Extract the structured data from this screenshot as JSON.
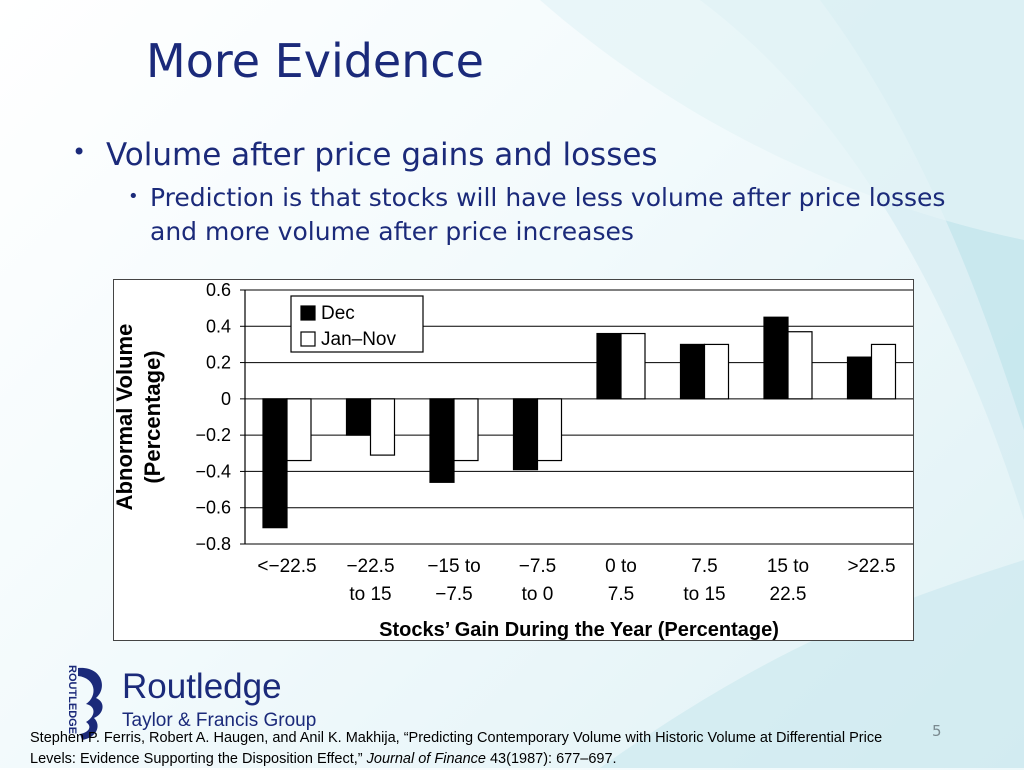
{
  "slide": {
    "title": "More Evidence",
    "bullet_1": "Volume after price gains and losses",
    "bullet_2": "Prediction is that stocks will have less volume after price losses and more volume after price increases",
    "page_number": "5"
  },
  "logo": {
    "name": "Routledge",
    "subtitle": "Taylor & Francis Group",
    "vertical_text": "ROUTLEDGE",
    "color": "#1b2a7a"
  },
  "citation": {
    "before_journal": "Stephen P. Ferris, Robert A. Haugen, and Anil K. Makhija, “Predicting Contemporary Volume with Historic Volume at Differential Price Levels: Evidence Supporting the Disposition Effect,”",
    "journal": "Journal of Finance",
    "after_journal": "43(1987): 677–697."
  },
  "chart_data": {
    "type": "bar",
    "categories": [
      [
        "<−22.5"
      ],
      [
        "−22.5",
        "to 15"
      ],
      [
        "−15 to",
        "−7.5"
      ],
      [
        "−7.5",
        "to 0"
      ],
      [
        "0 to",
        "7.5"
      ],
      [
        "7.5",
        "to 15"
      ],
      [
        "15 to",
        "22.5"
      ],
      [
        ">22.5"
      ]
    ],
    "series": [
      {
        "name": "Dec",
        "values": [
          -0.71,
          -0.2,
          -0.46,
          -0.39,
          0.36,
          0.3,
          0.45,
          0.23
        ],
        "color": "#000000"
      },
      {
        "name": "Jan–Nov",
        "values": [
          -0.34,
          -0.31,
          -0.34,
          -0.34,
          0.36,
          0.3,
          0.37,
          0.3
        ],
        "color": "#ffffff"
      }
    ],
    "xlabel": "Stocks’ Gain During the Year (Percentage)",
    "ylabel": [
      "Abnormal Volume",
      "(Percentage)"
    ],
    "ylim": [
      -0.8,
      0.6
    ],
    "yticks": [
      0.6,
      0.4,
      0.2,
      0,
      -0.2,
      -0.4,
      -0.6,
      -0.8
    ],
    "ytick_labels": [
      "0.6",
      "0.4",
      "0.2",
      "0",
      "−0.2",
      "−0.4",
      "−0.6",
      "−0.8"
    ],
    "grid": true,
    "legend": "top-left"
  }
}
